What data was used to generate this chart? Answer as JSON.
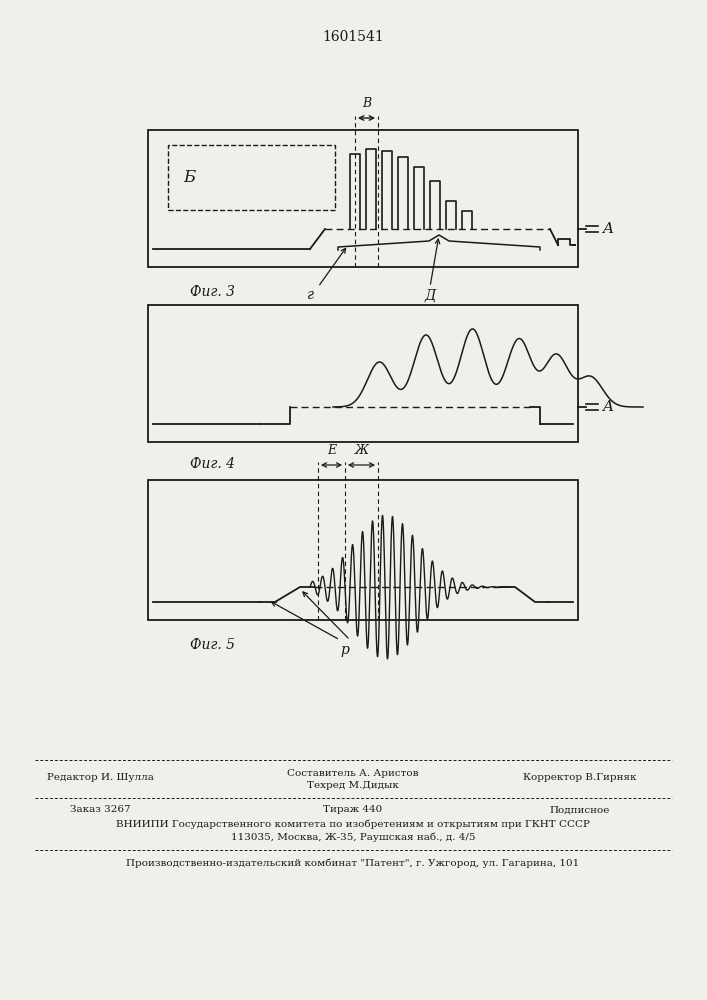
{
  "title_number": "1601541",
  "fig3_label": "Фиг. 3",
  "fig4_label": "Фиг. 4",
  "fig5_label": "Фиг. 5",
  "label_B": "B",
  "label_A": "A",
  "label_Б": "Б",
  "label_g": "г",
  "label_d": "Д",
  "label_E": "E",
  "label_Zh": "Ж",
  "label_r": "р",
  "footer_line1": "Составитель А. Аристов",
  "footer_line2": "Техред М.Дидык",
  "footer_editor": "Редактор И. Шулла",
  "footer_corrector": "Корректор В.Гирняк",
  "footer_order": "Заказ 3267",
  "footer_tirazh": "Тираж 440",
  "footer_podpisnoe": "Подписное",
  "footer_vnipi": "ВНИИПИ Государственного комитета по изобретениям и открытиям при ГКНТ СССР",
  "footer_address": "113035, Москва, Ж-35, Раушская наб., д. 4/5",
  "footer_plant": "Производственно-издательский комбинат \"Патент\", г. Ужгород, ул. Гагарина, 101",
  "bg_color": "#f0f0eb",
  "line_color": "#1a1a1a"
}
